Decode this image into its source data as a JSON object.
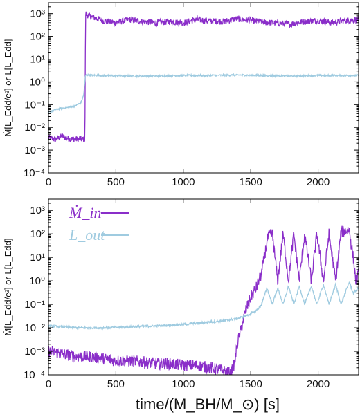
{
  "colors": {
    "inflow": "#8a2ec9",
    "luminosity": "#9fcbe0"
  },
  "x_axis_label": "time/(M_BH/M_⊙) [s]",
  "chart_data": [
    {
      "type": "line",
      "ylabel": "Ṁ[L_Edd/c²] or L[L_Edd]",
      "xlim": [
        0,
        2300
      ],
      "ylim": [
        0.0001,
        3000
      ],
      "yscale": "log",
      "x_ticks": [
        "0",
        "500",
        "1000",
        "1500",
        "2000"
      ],
      "y_ticks": [
        "10⁻⁴",
        "10⁻³",
        "10⁻²",
        "10⁻¹",
        "10⁰",
        "10¹",
        "10²",
        "10³"
      ],
      "legend": [],
      "series": [
        {
          "color": "#8a2ec9",
          "points": [
            [
              0,
              0.0035
            ],
            [
              50,
              0.003
            ],
            [
              100,
              0.004
            ],
            [
              150,
              0.0032
            ],
            [
              200,
              0.003
            ],
            [
              250,
              0.003
            ],
            [
              270,
              0.003
            ],
            [
              275,
              1000
            ],
            [
              300,
              800
            ],
            [
              400,
              500
            ],
            [
              500,
              400
            ],
            [
              600,
              550
            ],
            [
              700,
              450
            ],
            [
              800,
              400
            ],
            [
              900,
              450
            ],
            [
              1000,
              400
            ],
            [
              1100,
              550
            ],
            [
              1200,
              480
            ],
            [
              1300,
              450
            ],
            [
              1400,
              600
            ],
            [
              1500,
              500
            ],
            [
              1600,
              420
            ],
            [
              1700,
              380
            ],
            [
              1800,
              350
            ],
            [
              1900,
              450
            ],
            [
              2000,
              500
            ],
            [
              2100,
              400
            ],
            [
              2200,
              500
            ],
            [
              2300,
              550
            ]
          ],
          "noise_dex": 0.14
        },
        {
          "color": "#9fcbe0",
          "points": [
            [
              0,
              0.045
            ],
            [
              50,
              0.06
            ],
            [
              100,
              0.07
            ],
            [
              150,
              0.075
            ],
            [
              200,
              0.09
            ],
            [
              240,
              0.12
            ],
            [
              260,
              0.25
            ],
            [
              275,
              2.0
            ],
            [
              400,
              1.9
            ],
            [
              600,
              1.8
            ],
            [
              800,
              1.8
            ],
            [
              1000,
              1.9
            ],
            [
              1200,
              1.9
            ],
            [
              1400,
              2.0
            ],
            [
              1600,
              1.9
            ],
            [
              1800,
              1.8
            ],
            [
              2000,
              1.9
            ],
            [
              2200,
              1.9
            ],
            [
              2300,
              1.9
            ]
          ],
          "noise_dex": 0.04
        }
      ]
    },
    {
      "type": "line",
      "ylabel": "Ṁ[L_Edd/c²] or L[L_Edd]",
      "xlim": [
        0,
        2300
      ],
      "ylim": [
        0.0001,
        3000
      ],
      "yscale": "log",
      "x_ticks": [
        "0",
        "500",
        "1000",
        "1500",
        "2000"
      ],
      "y_ticks": [
        "10⁻⁴",
        "10⁻³",
        "10⁻²",
        "10⁻¹",
        "10⁰",
        "10¹",
        "10²",
        "10³"
      ],
      "legend": [
        {
          "name": "Ṁ_in",
          "color": "#8a2ec9"
        },
        {
          "name": "L_out",
          "color": "#9fcbe0"
        }
      ],
      "series": [
        {
          "color": "#8a2ec9",
          "points": [
            [
              0,
              0.001
            ],
            [
              100,
              0.0008
            ],
            [
              200,
              0.0006
            ],
            [
              300,
              0.0006
            ],
            [
              400,
              0.0005
            ],
            [
              500,
              0.0004
            ],
            [
              600,
              0.0004
            ],
            [
              700,
              0.00035
            ],
            [
              800,
              0.0003
            ],
            [
              900,
              0.0003
            ],
            [
              1000,
              0.00025
            ],
            [
              1100,
              0.00025
            ],
            [
              1200,
              0.0002
            ],
            [
              1300,
              0.00015
            ],
            [
              1350,
              0.00012
            ],
            [
              1380,
              0.0003
            ],
            [
              1400,
              0.002
            ],
            [
              1430,
              0.01
            ],
            [
              1460,
              0.05
            ],
            [
              1500,
              0.2
            ],
            [
              1540,
              0.5
            ],
            [
              1580,
              2
            ],
            [
              1600,
              10
            ],
            [
              1630,
              80
            ],
            [
              1660,
              100
            ],
            [
              1700,
              1
            ],
            [
              1740,
              100
            ],
            [
              1780,
              1
            ],
            [
              1820,
              100
            ],
            [
              1860,
              1
            ],
            [
              1900,
              100
            ],
            [
              1950,
              1
            ],
            [
              1990,
              100
            ],
            [
              2040,
              1
            ],
            [
              2080,
              100
            ],
            [
              2130,
              1
            ],
            [
              2170,
              120
            ],
            [
              2230,
              150
            ],
            [
              2260,
              10
            ],
            [
              2280,
              1
            ],
            [
              2300,
              2
            ]
          ],
          "noise_dex": 0.25
        },
        {
          "color": "#9fcbe0",
          "points": [
            [
              0,
              0.012
            ],
            [
              200,
              0.01
            ],
            [
              400,
              0.01
            ],
            [
              600,
              0.011
            ],
            [
              800,
              0.012
            ],
            [
              1000,
              0.014
            ],
            [
              1200,
              0.018
            ],
            [
              1300,
              0.02
            ],
            [
              1400,
              0.025
            ],
            [
              1450,
              0.03
            ],
            [
              1500,
              0.04
            ],
            [
              1550,
              0.06
            ],
            [
              1580,
              0.1
            ],
            [
              1620,
              0.5
            ],
            [
              1660,
              0.1
            ],
            [
              1700,
              0.5
            ],
            [
              1740,
              0.1
            ],
            [
              1780,
              0.6
            ],
            [
              1820,
              0.1
            ],
            [
              1860,
              0.6
            ],
            [
              1900,
              0.1
            ],
            [
              1950,
              0.6
            ],
            [
              1990,
              0.1
            ],
            [
              2040,
              0.7
            ],
            [
              2080,
              0.1
            ],
            [
              2130,
              0.7
            ],
            [
              2170,
              0.1
            ],
            [
              2230,
              0.9
            ],
            [
              2260,
              0.3
            ],
            [
              2300,
              0.5
            ]
          ],
          "noise_dex": 0.05
        }
      ]
    }
  ]
}
